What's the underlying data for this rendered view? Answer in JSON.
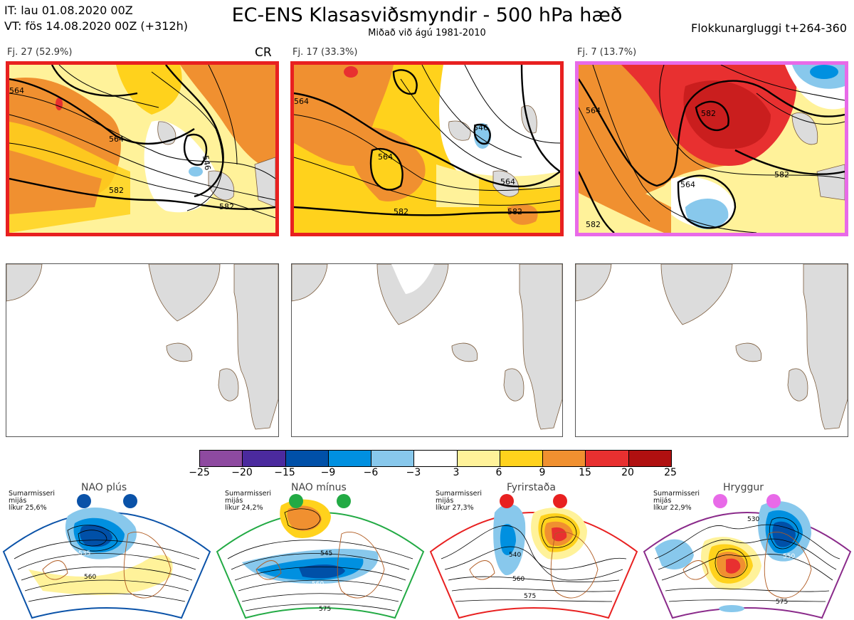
{
  "header": {
    "it_line": "IT: lau 01.08.2020 00Z",
    "vt_line": "VT: fös 14.08.2020 00Z  (+312h)",
    "title": "EC-ENS Klasasviðsmyndir - 500 hPa hæð",
    "subtitle": "Miðað við ágú 1981-2010",
    "window": "Flokkunargluggi t+264-360"
  },
  "clusters": [
    {
      "label": "Fj. 27 (52.9%)",
      "tag": "CR",
      "border": "#e82020",
      "contours": [
        "564",
        "546",
        "564",
        "582",
        "582"
      ]
    },
    {
      "label": "Fj. 17 (33.3%)",
      "tag": "",
      "border": "#e82020",
      "contours": [
        "564",
        "564",
        "546",
        "564",
        "582",
        "582"
      ]
    },
    {
      "label": "Fj. 7 (13.7%)",
      "tag": "",
      "border": "#e86ae8",
      "contours": [
        "564",
        "582",
        "564",
        "582",
        "582"
      ]
    }
  ],
  "colorbar": {
    "labels": [
      "−25",
      "−20",
      "−15",
      "−9",
      "−6",
      "−3",
      "3",
      "6",
      "9",
      "15",
      "20",
      "25"
    ],
    "colors": [
      "#8e4aa0",
      "#4b2a9e",
      "#0050a8",
      "#0090e0",
      "#88c8ec",
      "#ffffff",
      "#fff29a",
      "#ffd21c",
      "#f09030",
      "#e83030",
      "#b01010"
    ]
  },
  "regimes": [
    {
      "title": "NAO plús",
      "note": [
        "Sumarmisseri",
        "mijás",
        "líkur 25,6%"
      ],
      "dot_color": "#0a52a8",
      "border": "#0a52a8",
      "contours": [
        "535",
        "560"
      ]
    },
    {
      "title": "NAO mínus",
      "note": [
        "Sumarmisseri",
        "mijás",
        "líkur 24,2%"
      ],
      "dot_color": "#22aa44",
      "border": "#22aa44",
      "contours": [
        "545",
        "560",
        "575"
      ]
    },
    {
      "title": "Fyrirstaða",
      "note": [
        "Sumarmisseri",
        "mijás",
        "líkur 27,3%"
      ],
      "dot_color": "#e82020",
      "border": "#e82020",
      "contours": [
        "540",
        "560",
        "575"
      ]
    },
    {
      "title": "Hryggur",
      "note": [
        "Sumarmisseri",
        "mijás",
        "líkur 22,9%"
      ],
      "dot_color": "#e86ae8",
      "border": "#8a2a8a",
      "contours": [
        "530",
        "550",
        "575"
      ]
    }
  ]
}
